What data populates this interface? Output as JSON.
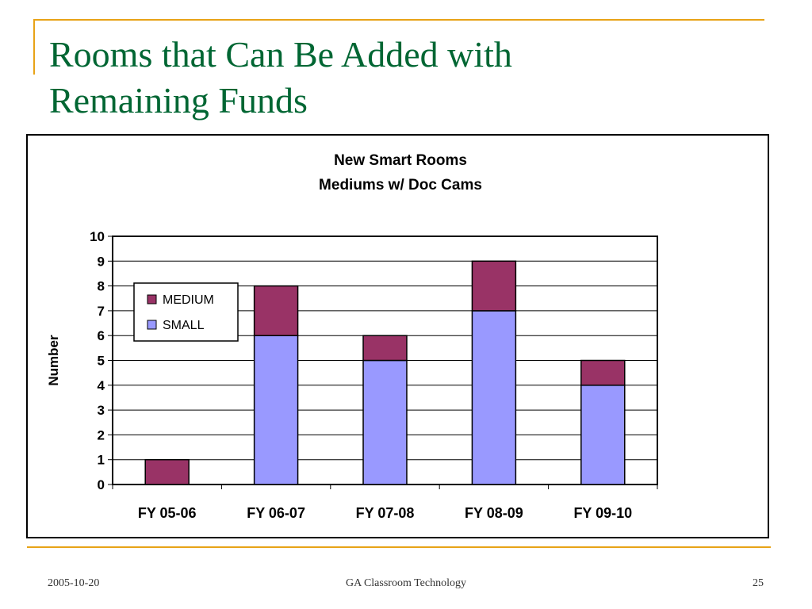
{
  "slide": {
    "title_line1": "Rooms that Can Be Added with",
    "title_line2": "Remaining Funds",
    "footer_date": "2005-10-20",
    "footer_center": "GA Classroom Technology",
    "page_number": "25"
  },
  "colors": {
    "title": "#006633",
    "accent_line": "#e8a317",
    "medium": "#993366",
    "small": "#9999ff"
  },
  "chart_data": {
    "type": "bar",
    "stacked": true,
    "title": "New Smart Rooms",
    "subtitle": "Mediums w/ Doc Cams",
    "xlabel": "",
    "ylabel": "Number",
    "categories": [
      "FY 05-06",
      "FY 06-07",
      "FY 07-08",
      "FY 08-09",
      "FY 09-10"
    ],
    "series": [
      {
        "name": "SMALL",
        "values": [
          0,
          6,
          5,
          7,
          4
        ],
        "color": "#9999ff"
      },
      {
        "name": "MEDIUM",
        "values": [
          1,
          2,
          1,
          2,
          1
        ],
        "color": "#993366"
      }
    ],
    "ylim": [
      0,
      10
    ],
    "yticks": [
      0,
      1,
      2,
      3,
      4,
      5,
      6,
      7,
      8,
      9,
      10
    ],
    "grid": true,
    "legend_position": "top-left",
    "legend_order": [
      "MEDIUM",
      "SMALL"
    ]
  }
}
